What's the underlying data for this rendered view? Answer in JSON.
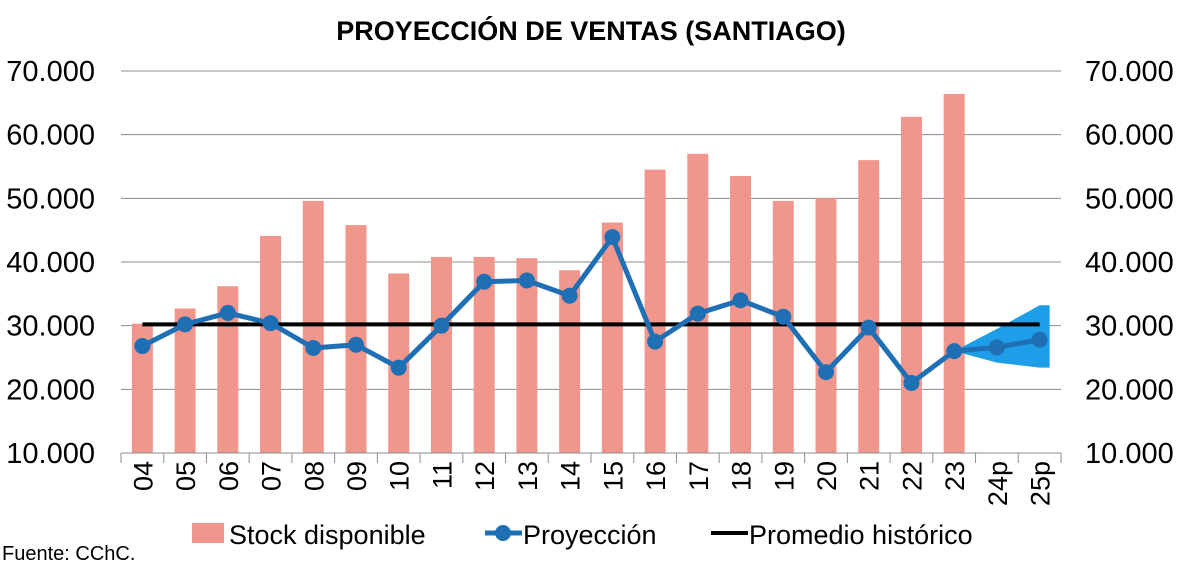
{
  "chart_data": {
    "type": "bar+line",
    "title": "PROYECCIÓN DE VENTAS (SANTIAGO)",
    "categories": [
      "04",
      "05",
      "06",
      "07",
      "08",
      "09",
      "10",
      "11",
      "12",
      "13",
      "14",
      "15",
      "16",
      "17",
      "18",
      "19",
      "20",
      "21",
      "22",
      "23",
      "24p",
      "25p"
    ],
    "y_ticks": [
      "10.000",
      "20.000",
      "30.000",
      "40.000",
      "50.000",
      "60.000",
      "70.000"
    ],
    "ylim": [
      10000,
      70000
    ],
    "series": [
      {
        "name": "Stock disponible",
        "kind": "bar",
        "color": "#f0968c",
        "values": [
          30300,
          32700,
          36200,
          44100,
          49600,
          45800,
          38200,
          40800,
          40800,
          40600,
          38700,
          46200,
          54500,
          57000,
          53500,
          49600,
          50000,
          56000,
          62800,
          66400,
          null,
          null
        ]
      },
      {
        "name": "Proyección",
        "kind": "line",
        "color": "#1f6fb4",
        "values": [
          26800,
          30200,
          32000,
          30400,
          26500,
          27000,
          23400,
          30000,
          36900,
          37100,
          34700,
          43900,
          27500,
          31900,
          34000,
          31400,
          22700,
          29700,
          21000,
          26000,
          26600,
          27800
        ]
      },
      {
        "name": "Promedio histórico",
        "kind": "hline",
        "color": "#000000",
        "value": 30200
      }
    ],
    "projection_band": {
      "color": "#1e9ee8",
      "upper": [
        26000,
        29500,
        33200
      ],
      "lower": [
        26000,
        24200,
        23400
      ]
    },
    "legend": [
      "Stock disponible",
      "Proyección",
      "Promedio histórico"
    ],
    "legend_position": "bottom"
  },
  "source": "Fuente:  CChC."
}
